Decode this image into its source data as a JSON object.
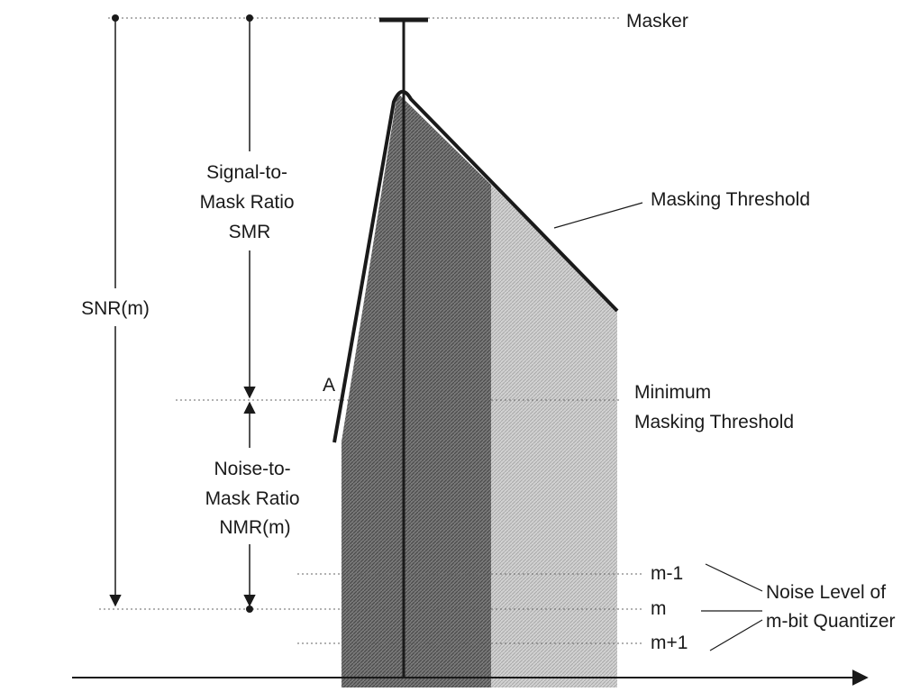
{
  "diagram": {
    "masker_label": "Masker",
    "masking_threshold_label": "Masking Threshold",
    "smr_label": [
      "Signal-to-",
      "Mask Ratio",
      "SMR"
    ],
    "snr_label": "SNR(m)",
    "nmr_label": [
      "Noise-to-",
      "Mask Ratio",
      "NMR(m)"
    ],
    "minimum_label": [
      "Minimum",
      "Masking Threshold"
    ],
    "point_a_label": "A",
    "level_labels": [
      "m-1",
      "m",
      "m+1"
    ],
    "noise_level_label": [
      "Noise Level of",
      "m-bit Quantizer"
    ]
  },
  "colors": {
    "ink": "#1a1a1a",
    "dark_band": "#6a6a6a",
    "light_band": "#c9c9c9",
    "dotted": "#666666"
  }
}
